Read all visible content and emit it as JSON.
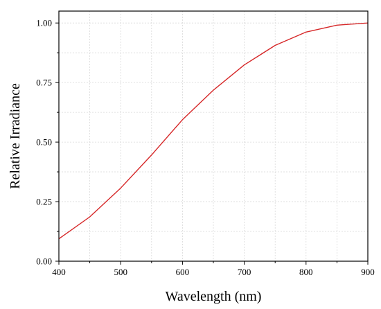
{
  "chart_data": {
    "type": "line",
    "title": "",
    "xlabel": "Wavelength (nm)",
    "ylabel": "Relative Irradiance",
    "xlim": [
      400,
      900
    ],
    "ylim": [
      0,
      1.05
    ],
    "x_ticks": [
      400,
      500,
      600,
      700,
      800,
      900
    ],
    "x_tick_labels": [
      "400",
      "500",
      "600",
      "700",
      "800",
      "900"
    ],
    "y_ticks": [
      0,
      0.25,
      0.5,
      0.75,
      1.0
    ],
    "y_tick_labels": [
      "0.00",
      "0.25",
      "0.50",
      "0.75",
      "1.00"
    ],
    "x_minor_ticks": [
      450,
      550,
      650,
      750,
      850
    ],
    "y_minor_ticks": [
      0.125,
      0.375,
      0.625,
      0.875
    ],
    "grid": true,
    "legend": "none",
    "series": [
      {
        "color": "#d62728",
        "x": [
          400,
          450,
          500,
          550,
          600,
          650,
          700,
          750,
          800,
          850,
          900
        ],
        "y": [
          0.094,
          0.186,
          0.307,
          0.446,
          0.594,
          0.718,
          0.824,
          0.906,
          0.962,
          0.991,
          1.0
        ]
      }
    ]
  }
}
